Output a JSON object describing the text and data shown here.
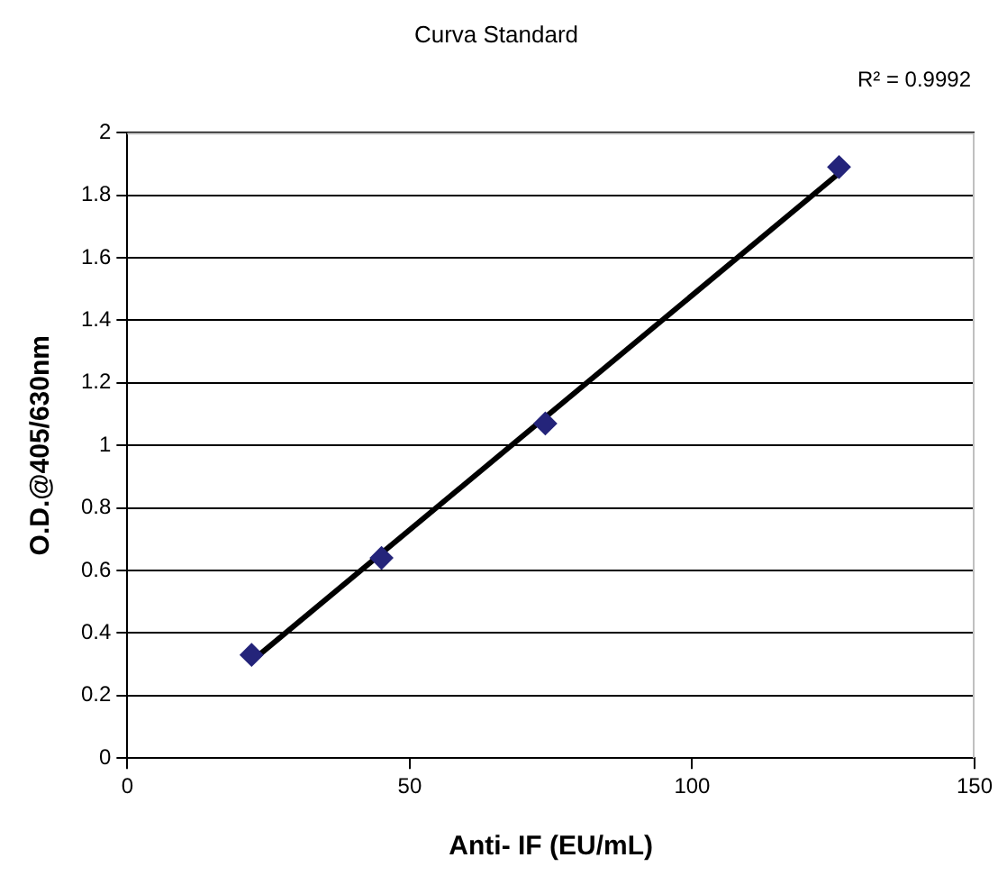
{
  "chart_data": {
    "type": "scatter",
    "title": "Curva Standard",
    "xlabel": "Anti- IF (EU/mL)",
    "ylabel": "O.D.@405/630nm",
    "annotations": [
      "R² = 0.9992"
    ],
    "series": [
      {
        "color": "#24247a",
        "x": [
          22,
          45,
          74,
          126
        ],
        "values": [
          0.33,
          0.64,
          1.07,
          1.89
        ],
        "marker": "diamond"
      },
      {
        "type": "line",
        "color": "#000000",
        "x": [
          22,
          126
        ],
        "values": [
          0.31,
          1.87
        ],
        "marker": "none",
        "line_style": "solid"
      }
    ],
    "xlim": [
      0,
      150
    ],
    "xticks": [
      0,
      50,
      100,
      150
    ],
    "ylim": [
      0,
      2
    ],
    "yticks": [
      0,
      0.2,
      0.4,
      0.6,
      0.8,
      1,
      1.2,
      1.4,
      1.6,
      1.8,
      2
    ],
    "grid": "y",
    "legend": false
  }
}
